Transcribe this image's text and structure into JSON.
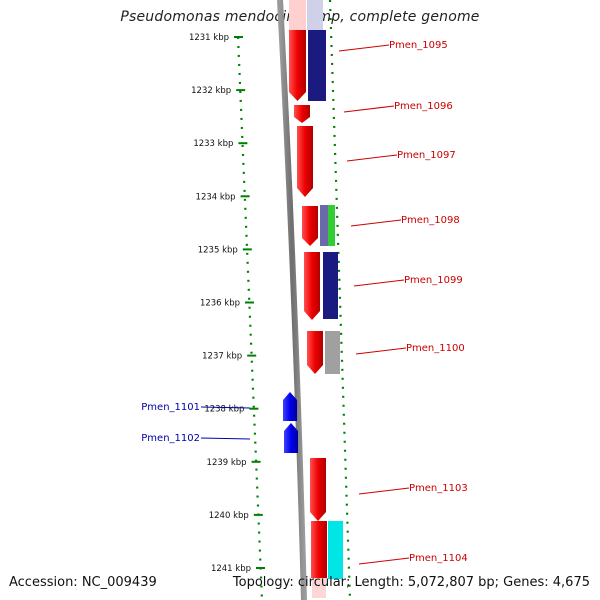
{
  "title": "Pseudomonas mendocina ymp, complete genome",
  "footer": {
    "accession": "Accession: NC_009439",
    "topology": "Topology: circular; Length: 5,072,807 bp; Genes: 4,675"
  },
  "ruler": {
    "unit": "kbp",
    "ticks": [
      "1231 kbp",
      "1232 kbp",
      "1233 kbp",
      "1234 kbp",
      "1235 kbp",
      "1236 kbp",
      "1237 kbp",
      "1238 kbp",
      "1239 kbp",
      "1240 kbp",
      "1241 kbp"
    ]
  },
  "genes": [
    {
      "label": "Pmen_1095",
      "strand": "+",
      "color": "#ff0000"
    },
    {
      "label": "Pmen_1096",
      "strand": "+",
      "color": "#ff0000"
    },
    {
      "label": "Pmen_1097",
      "strand": "+",
      "color": "#ff0000"
    },
    {
      "label": "Pmen_1098",
      "strand": "+",
      "color": "#ff0000"
    },
    {
      "label": "Pmen_1099",
      "strand": "+",
      "color": "#ff0000"
    },
    {
      "label": "Pmen_1100",
      "strand": "+",
      "color": "#ff0000"
    },
    {
      "label": "Pmen_1101",
      "strand": "-",
      "color": "#0000ff"
    },
    {
      "label": "Pmen_1102",
      "strand": "-",
      "color": "#0000ff"
    },
    {
      "label": "Pmen_1103",
      "strand": "+",
      "color": "#ff0000"
    },
    {
      "label": "Pmen_1104",
      "strand": "+",
      "color": "#ff0000"
    }
  ],
  "colors": {
    "plus_label": "#cc0000",
    "minus_label": "#0000aa",
    "ruler": "#008000",
    "backbone": "#808080",
    "cog_navy": "#1a1a80",
    "cog_green": "#33cc33",
    "cog_grey": "#a0a0a0",
    "cog_cyan": "#00e5e5"
  }
}
